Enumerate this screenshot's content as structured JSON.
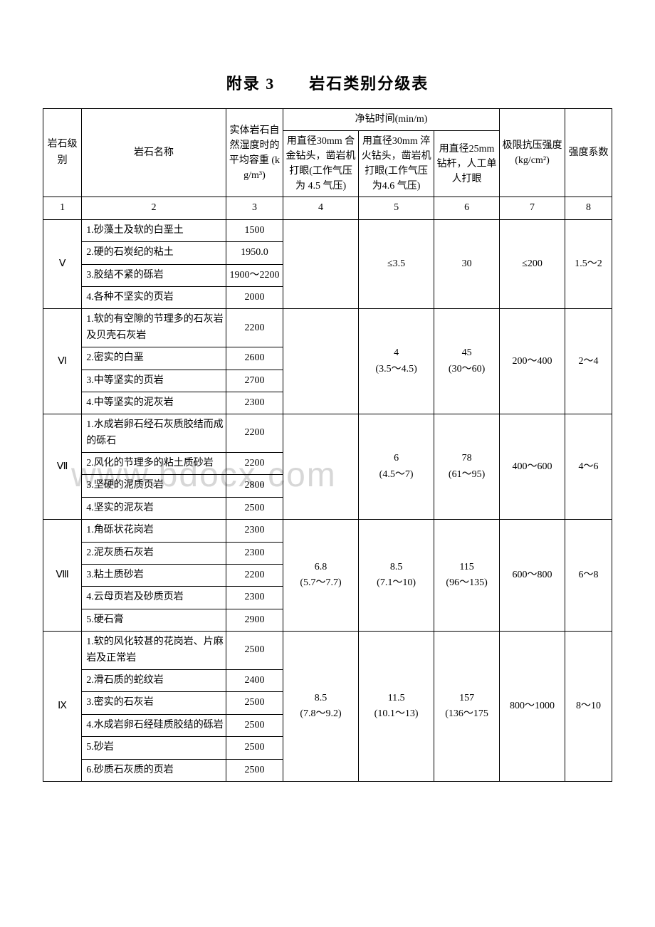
{
  "title": "附录 3  岩石类别分级表",
  "watermark": "www.bdocx.com",
  "headers": {
    "level": "岩石级别",
    "name": "岩石名称",
    "density": "实体岩石自然湿度时的平均容重 (kg/m³)",
    "drill_group": "净钻时间(min/m)",
    "drill1": "用直径30mm 合金钻头，凿岩机打眼(工作气压为 4.5 气压)",
    "drill2": "用直径30mm 淬火钻头，凿岩机打眼(工作气压为4.6 气压)",
    "drill3": "用直径25mm 钻杆，人工单人打眼",
    "pressure": "极限抗压强度(kg/cm²)",
    "coef": "强度系数"
  },
  "index_row": [
    "1",
    "2",
    "3",
    "4",
    "5",
    "6",
    "7",
    "8"
  ],
  "groups": [
    {
      "level": "Ⅴ",
      "rows": [
        {
          "name": "1.砂藻土及软的白垩土",
          "density": "1500"
        },
        {
          "name": "2.硬的石炭纪的粘土",
          "density": "1950.0"
        },
        {
          "name": "3.胶结不紧的砾岩",
          "density": "1900～2200"
        },
        {
          "name": "4.各种不坚实的页岩",
          "density": "2000"
        }
      ],
      "d1": "",
      "d2": "≤3.5",
      "d3": "30",
      "pressure": "≤200",
      "coef": "1.5～2"
    },
    {
      "level": "Ⅵ",
      "rows": [
        {
          "name": "1.软的有空隙的节理多的石灰岩及贝壳石灰岩",
          "density": "2200"
        },
        {
          "name": "2.密实的白垩",
          "density": "2600"
        },
        {
          "name": "3.中等坚实的页岩",
          "density": "2700"
        },
        {
          "name": "4.中等坚实的泥灰岩",
          "density": "2300"
        }
      ],
      "d1": "",
      "d2": "4\n(3.5～4.5)",
      "d3": "45\n(30～60)",
      "pressure": "200～400",
      "coef": "2～4"
    },
    {
      "level": "Ⅶ",
      "rows": [
        {
          "name": "1.水成岩卵石经石灰质胶结而成的砾石",
          "density": "2200"
        },
        {
          "name": "2.风化的节理多的粘土质砂岩",
          "density": "2200"
        },
        {
          "name": "3.坚硬的泥质页岩",
          "density": "2800"
        },
        {
          "name": "4.坚实的泥灰岩",
          "density": "2500"
        }
      ],
      "d1": "",
      "d2": "6\n(4.5～7)",
      "d3": "78\n(61～95)",
      "pressure": "400～600",
      "coef": "4～6"
    },
    {
      "level": "Ⅷ",
      "rows": [
        {
          "name": "1.角砾状花岗岩",
          "density": "2300"
        },
        {
          "name": "2.泥灰质石灰岩",
          "density": "2300"
        },
        {
          "name": "3.粘土质砂岩",
          "density": "2200"
        },
        {
          "name": "4.云母页岩及砂质页岩",
          "density": "2300"
        },
        {
          "name": "5.硬石膏",
          "density": "2900"
        }
      ],
      "d1": "6.8\n(5.7～7.7)",
      "d2": "8.5\n(7.1～10)",
      "d3": "115\n(96～135)",
      "pressure": "600～800",
      "coef": "6～8"
    },
    {
      "level": "Ⅸ",
      "rows": [
        {
          "name": "1.软的风化较甚的花岗岩、片麻岩及正常岩",
          "density": "2500"
        },
        {
          "name": "2.滑石质的蛇纹岩",
          "density": "2400"
        },
        {
          "name": "3.密实的石灰岩",
          "density": "2500"
        },
        {
          "name": "4.水成岩卵石经硅质胶结的砾岩",
          "density": "2500"
        },
        {
          "name": "5.砂岩",
          "density": "2500"
        },
        {
          "name": "6.砂质石灰质的页岩",
          "density": "2500"
        }
      ],
      "d1": "8.5\n(7.8～9.2)",
      "d2": "11.5\n(10.1～13)",
      "d3": "157\n(136～175",
      "pressure": "800～1000",
      "coef": "8～10"
    }
  ]
}
